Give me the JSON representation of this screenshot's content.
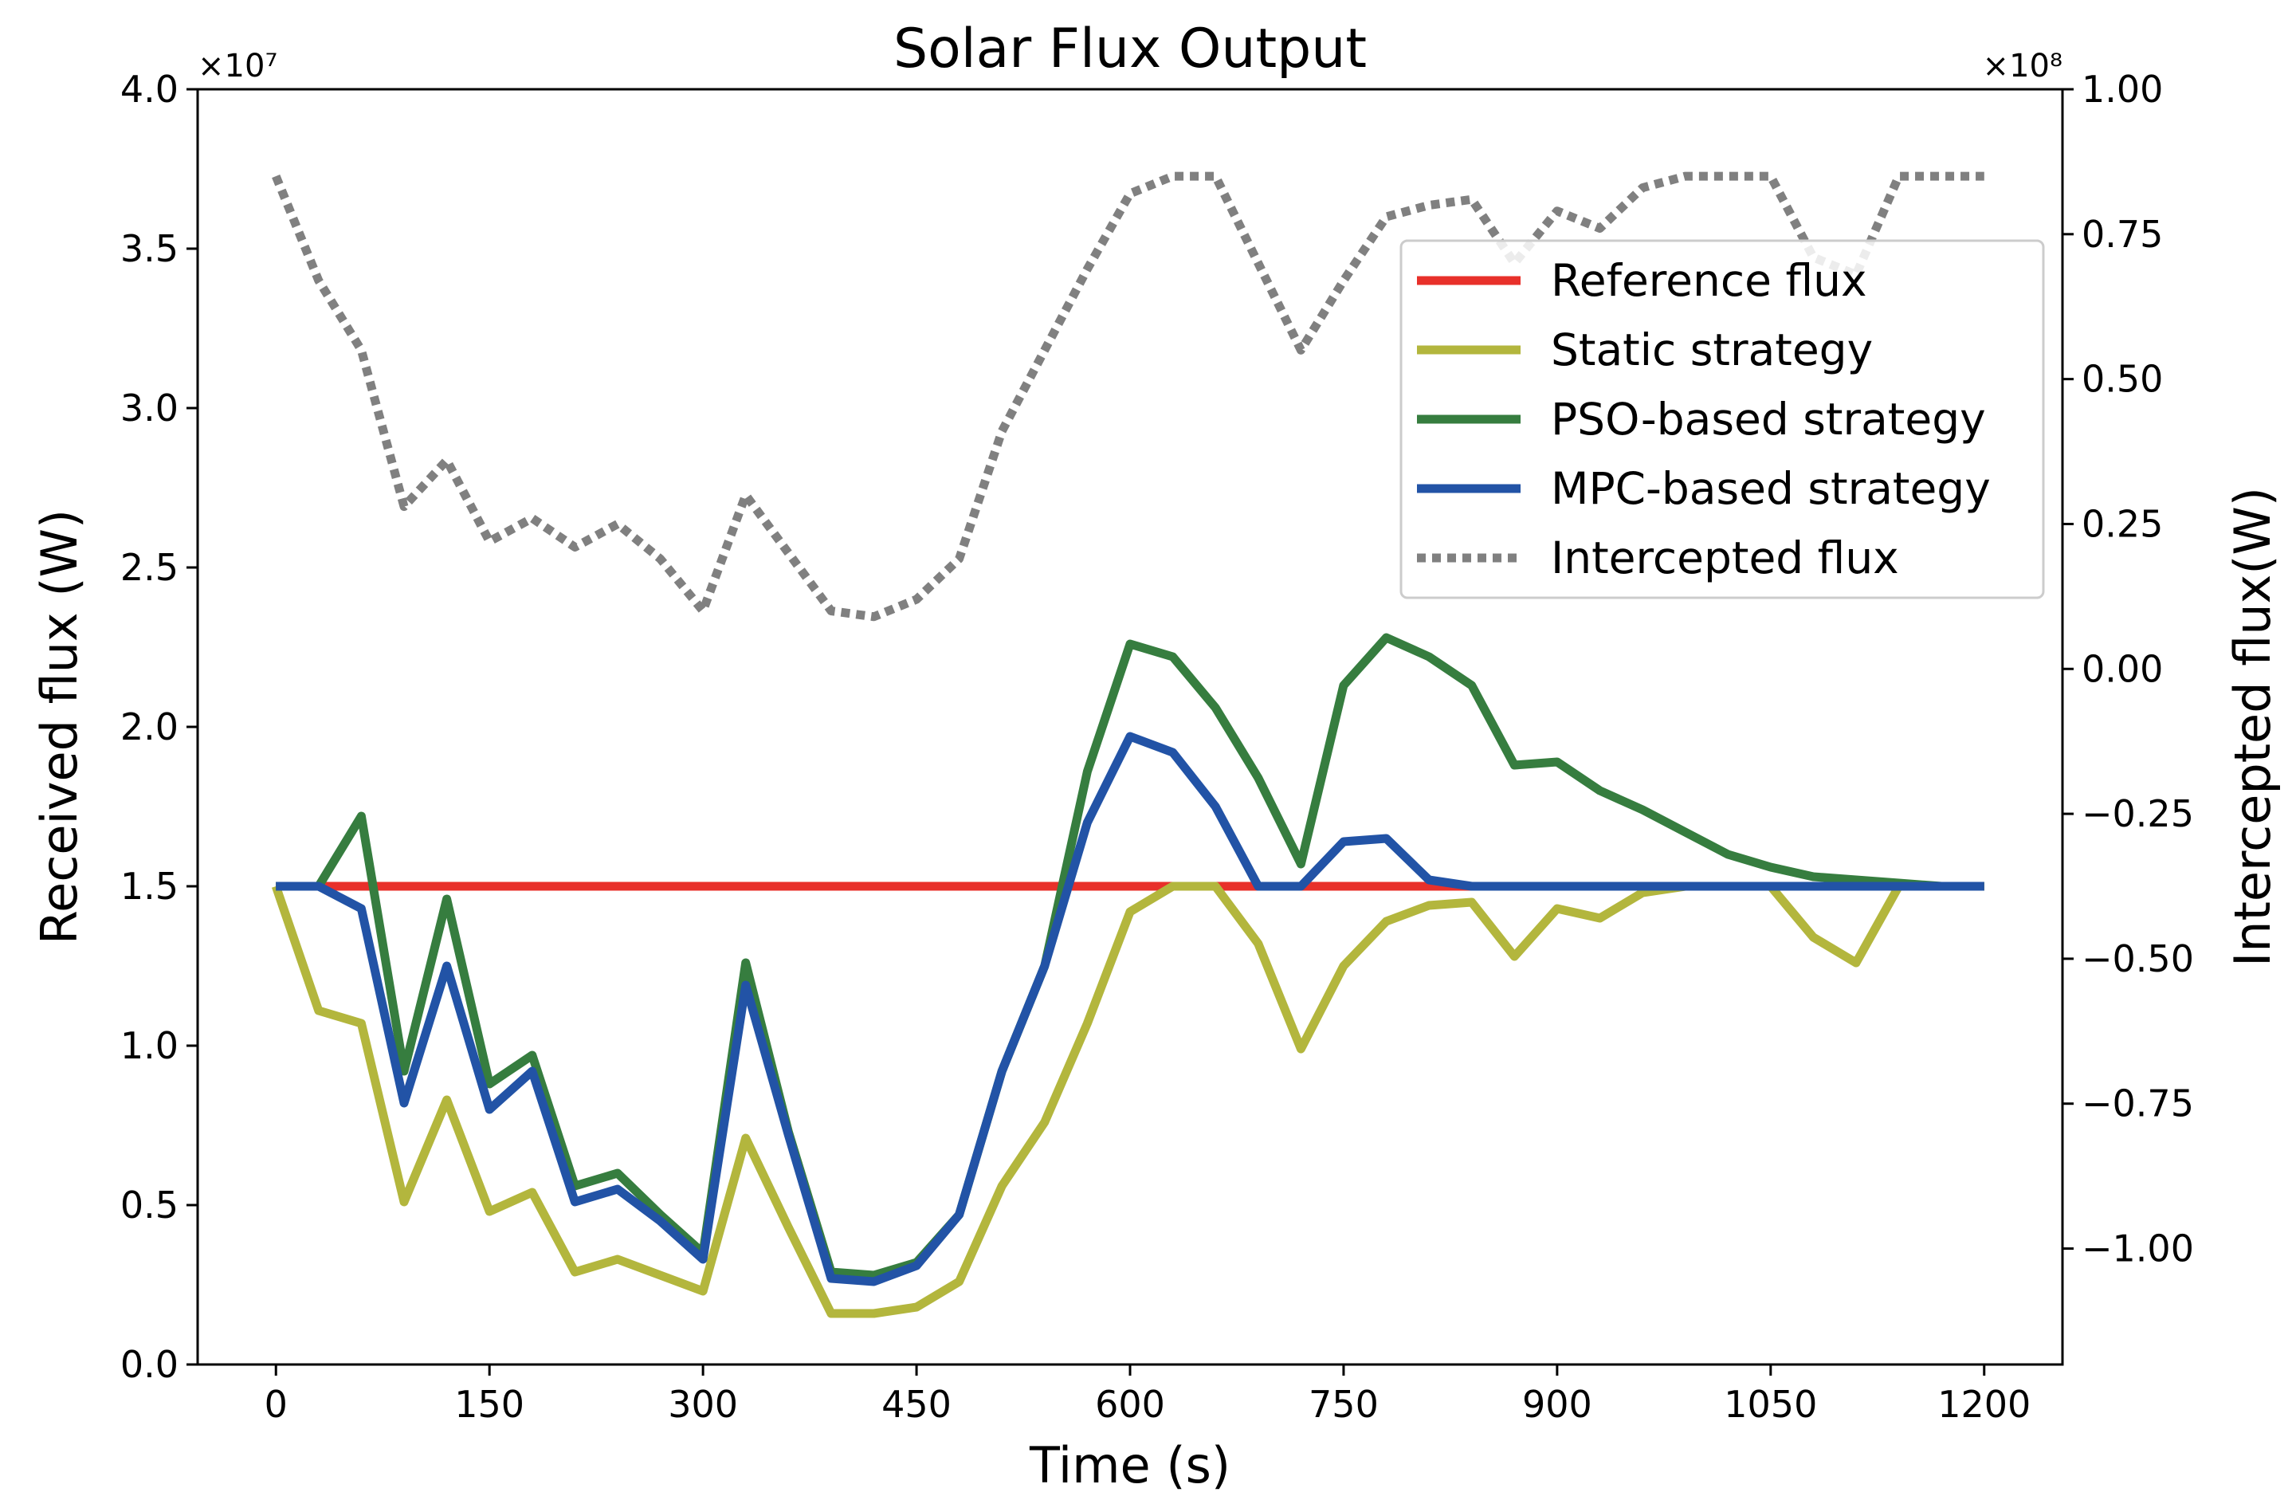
{
  "chart_data": {
    "type": "line",
    "title": "Solar Flux Output",
    "xlabel": "Time (s)",
    "ylabel": "Received flux (W)",
    "y2label": "Intercepted flux(W)",
    "xlim": [
      -55,
      1255
    ],
    "ylim": [
      0,
      4.0
    ],
    "y2lim": [
      -1.2,
      1.0
    ],
    "y_offset_label": "×10⁷",
    "y2_offset_label": "×10⁸",
    "xticks": [
      0,
      150,
      300,
      450,
      600,
      750,
      900,
      1050,
      1200
    ],
    "xtick_labels": [
      "0",
      "150",
      "300",
      "450",
      "600",
      "750",
      "900",
      "1050",
      "1200"
    ],
    "yticks": [
      0,
      0.5,
      1.0,
      1.5,
      2.0,
      2.5,
      3.0,
      3.5,
      4.0
    ],
    "ytick_labels": [
      "0.0",
      "0.5",
      "1.0",
      "1.5",
      "2.0",
      "2.5",
      "3.0",
      "3.5",
      "4.0"
    ],
    "y2ticks": [
      -1.0,
      -0.75,
      -0.5,
      -0.25,
      0.0,
      0.25,
      0.5,
      0.75,
      1.0
    ],
    "y2tick_labels": [
      "−1.00",
      "−0.75",
      "−0.50",
      "−0.25",
      "0.00",
      "0.25",
      "0.50",
      "0.75",
      "1.00"
    ],
    "legend_position": "upper-right",
    "x": [
      0,
      30,
      60,
      90,
      120,
      150,
      180,
      210,
      240,
      270,
      300,
      330,
      360,
      390,
      420,
      450,
      480,
      510,
      540,
      570,
      600,
      630,
      660,
      690,
      720,
      750,
      780,
      810,
      840,
      870,
      900,
      930,
      960,
      990,
      1020,
      1050,
      1080,
      1110,
      1140,
      1170,
      1200
    ],
    "series": [
      {
        "name": "Reference flux",
        "axis": "left",
        "color": "#e8302a",
        "style": "solid",
        "values": [
          1.5,
          1.5,
          1.5,
          1.5,
          1.5,
          1.5,
          1.5,
          1.5,
          1.5,
          1.5,
          1.5,
          1.5,
          1.5,
          1.5,
          1.5,
          1.5,
          1.5,
          1.5,
          1.5,
          1.5,
          1.5,
          1.5,
          1.5,
          1.5,
          1.5,
          1.5,
          1.5,
          1.5,
          1.5,
          1.5,
          1.5,
          1.5,
          1.5,
          1.5,
          1.5,
          1.5,
          1.5,
          1.5,
          1.5,
          1.5,
          1.5
        ]
      },
      {
        "name": "Static strategy",
        "axis": "left",
        "color": "#b3b63d",
        "style": "solid",
        "values": [
          1.5,
          1.11,
          1.07,
          0.51,
          0.83,
          0.48,
          0.54,
          0.29,
          0.33,
          0.28,
          0.23,
          0.71,
          0.43,
          0.16,
          0.16,
          0.18,
          0.26,
          0.56,
          0.76,
          1.07,
          1.42,
          1.5,
          1.5,
          1.32,
          0.99,
          1.25,
          1.39,
          1.44,
          1.45,
          1.28,
          1.43,
          1.4,
          1.48,
          1.5,
          1.5,
          1.5,
          1.34,
          1.26,
          1.5,
          1.5,
          1.5
        ]
      },
      {
        "name": "PSO-based strategy",
        "axis": "left",
        "color": "#367d3f",
        "style": "solid",
        "values": [
          1.5,
          1.5,
          1.72,
          0.92,
          1.46,
          0.88,
          0.97,
          0.56,
          0.6,
          0.47,
          0.35,
          1.26,
          0.73,
          0.29,
          0.28,
          0.32,
          0.47,
          0.92,
          1.25,
          1.86,
          2.26,
          2.22,
          2.06,
          1.84,
          1.57,
          2.13,
          2.28,
          2.22,
          2.13,
          1.88,
          1.89,
          1.8,
          1.74,
          1.67,
          1.6,
          1.56,
          1.53,
          1.52,
          1.51,
          1.5,
          1.5
        ]
      },
      {
        "name": "MPC-based strategy",
        "axis": "left",
        "color": "#2253a6",
        "style": "solid",
        "values": [
          1.5,
          1.5,
          1.43,
          0.82,
          1.25,
          0.8,
          0.92,
          0.51,
          0.55,
          0.45,
          0.33,
          1.19,
          0.72,
          0.27,
          0.26,
          0.31,
          0.47,
          0.92,
          1.25,
          1.7,
          1.97,
          1.92,
          1.75,
          1.5,
          1.5,
          1.64,
          1.65,
          1.52,
          1.5,
          1.5,
          1.5,
          1.5,
          1.5,
          1.5,
          1.5,
          1.5,
          1.5,
          1.5,
          1.5,
          1.5,
          1.5
        ]
      },
      {
        "name": "Intercepted flux",
        "axis": "right",
        "color": "#808080",
        "style": "dotted",
        "values": [
          0.85,
          0.67,
          0.55,
          0.28,
          0.36,
          0.22,
          0.26,
          0.21,
          0.25,
          0.19,
          0.1,
          0.3,
          0.2,
          0.1,
          0.09,
          0.12,
          0.19,
          0.41,
          0.55,
          0.69,
          0.82,
          0.85,
          0.85,
          0.7,
          0.55,
          0.67,
          0.78,
          0.8,
          0.81,
          0.7,
          0.79,
          0.76,
          0.83,
          0.85,
          0.85,
          0.85,
          0.71,
          0.68,
          0.85,
          0.85,
          0.85
        ]
      }
    ]
  }
}
